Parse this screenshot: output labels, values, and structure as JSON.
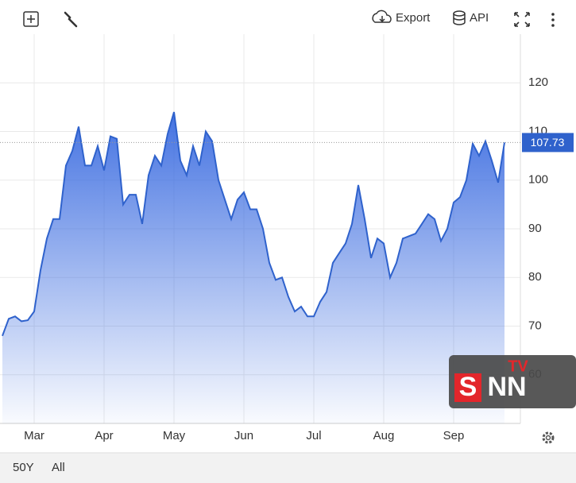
{
  "toolbar": {
    "export": "Export",
    "api": "API"
  },
  "footer": {
    "ranges": [
      "50Y",
      "All"
    ]
  },
  "watermark": {
    "s": "S",
    "nn": "NN",
    "tv": "TV"
  },
  "chart_data": {
    "type": "area",
    "categories": [
      null,
      "Mar",
      "Apr",
      "May",
      "Jun",
      "Jul",
      "Aug",
      "Sep"
    ],
    "values": [
      [
        68,
        71.5,
        72,
        71,
        71.2
      ],
      [
        73,
        81.5,
        88,
        92,
        92,
        103,
        106,
        111,
        103,
        103,
        107
      ],
      [
        102,
        109,
        108.5,
        95,
        97,
        97,
        91,
        101,
        105,
        103,
        109.5
      ],
      [
        114,
        104,
        101,
        107,
        103,
        110,
        108,
        100,
        96,
        92,
        96
      ],
      [
        97.5,
        94,
        94,
        90,
        83,
        79.5,
        80,
        76,
        73,
        74,
        72
      ],
      [
        72,
        75,
        77,
        83,
        85,
        87,
        91,
        99,
        92,
        84,
        88
      ],
      [
        87,
        80,
        83,
        88,
        88.5,
        89,
        91,
        93,
        92,
        87.5,
        90
      ],
      [
        95.4,
        96.5,
        100,
        107.5,
        105,
        108,
        104,
        99.5,
        107.73
      ]
    ],
    "color": "#2f62cc",
    "ylim": [
      50,
      130
    ],
    "yticks": [
      60,
      70,
      80,
      90,
      100,
      110,
      120
    ],
    "grid": true
  }
}
